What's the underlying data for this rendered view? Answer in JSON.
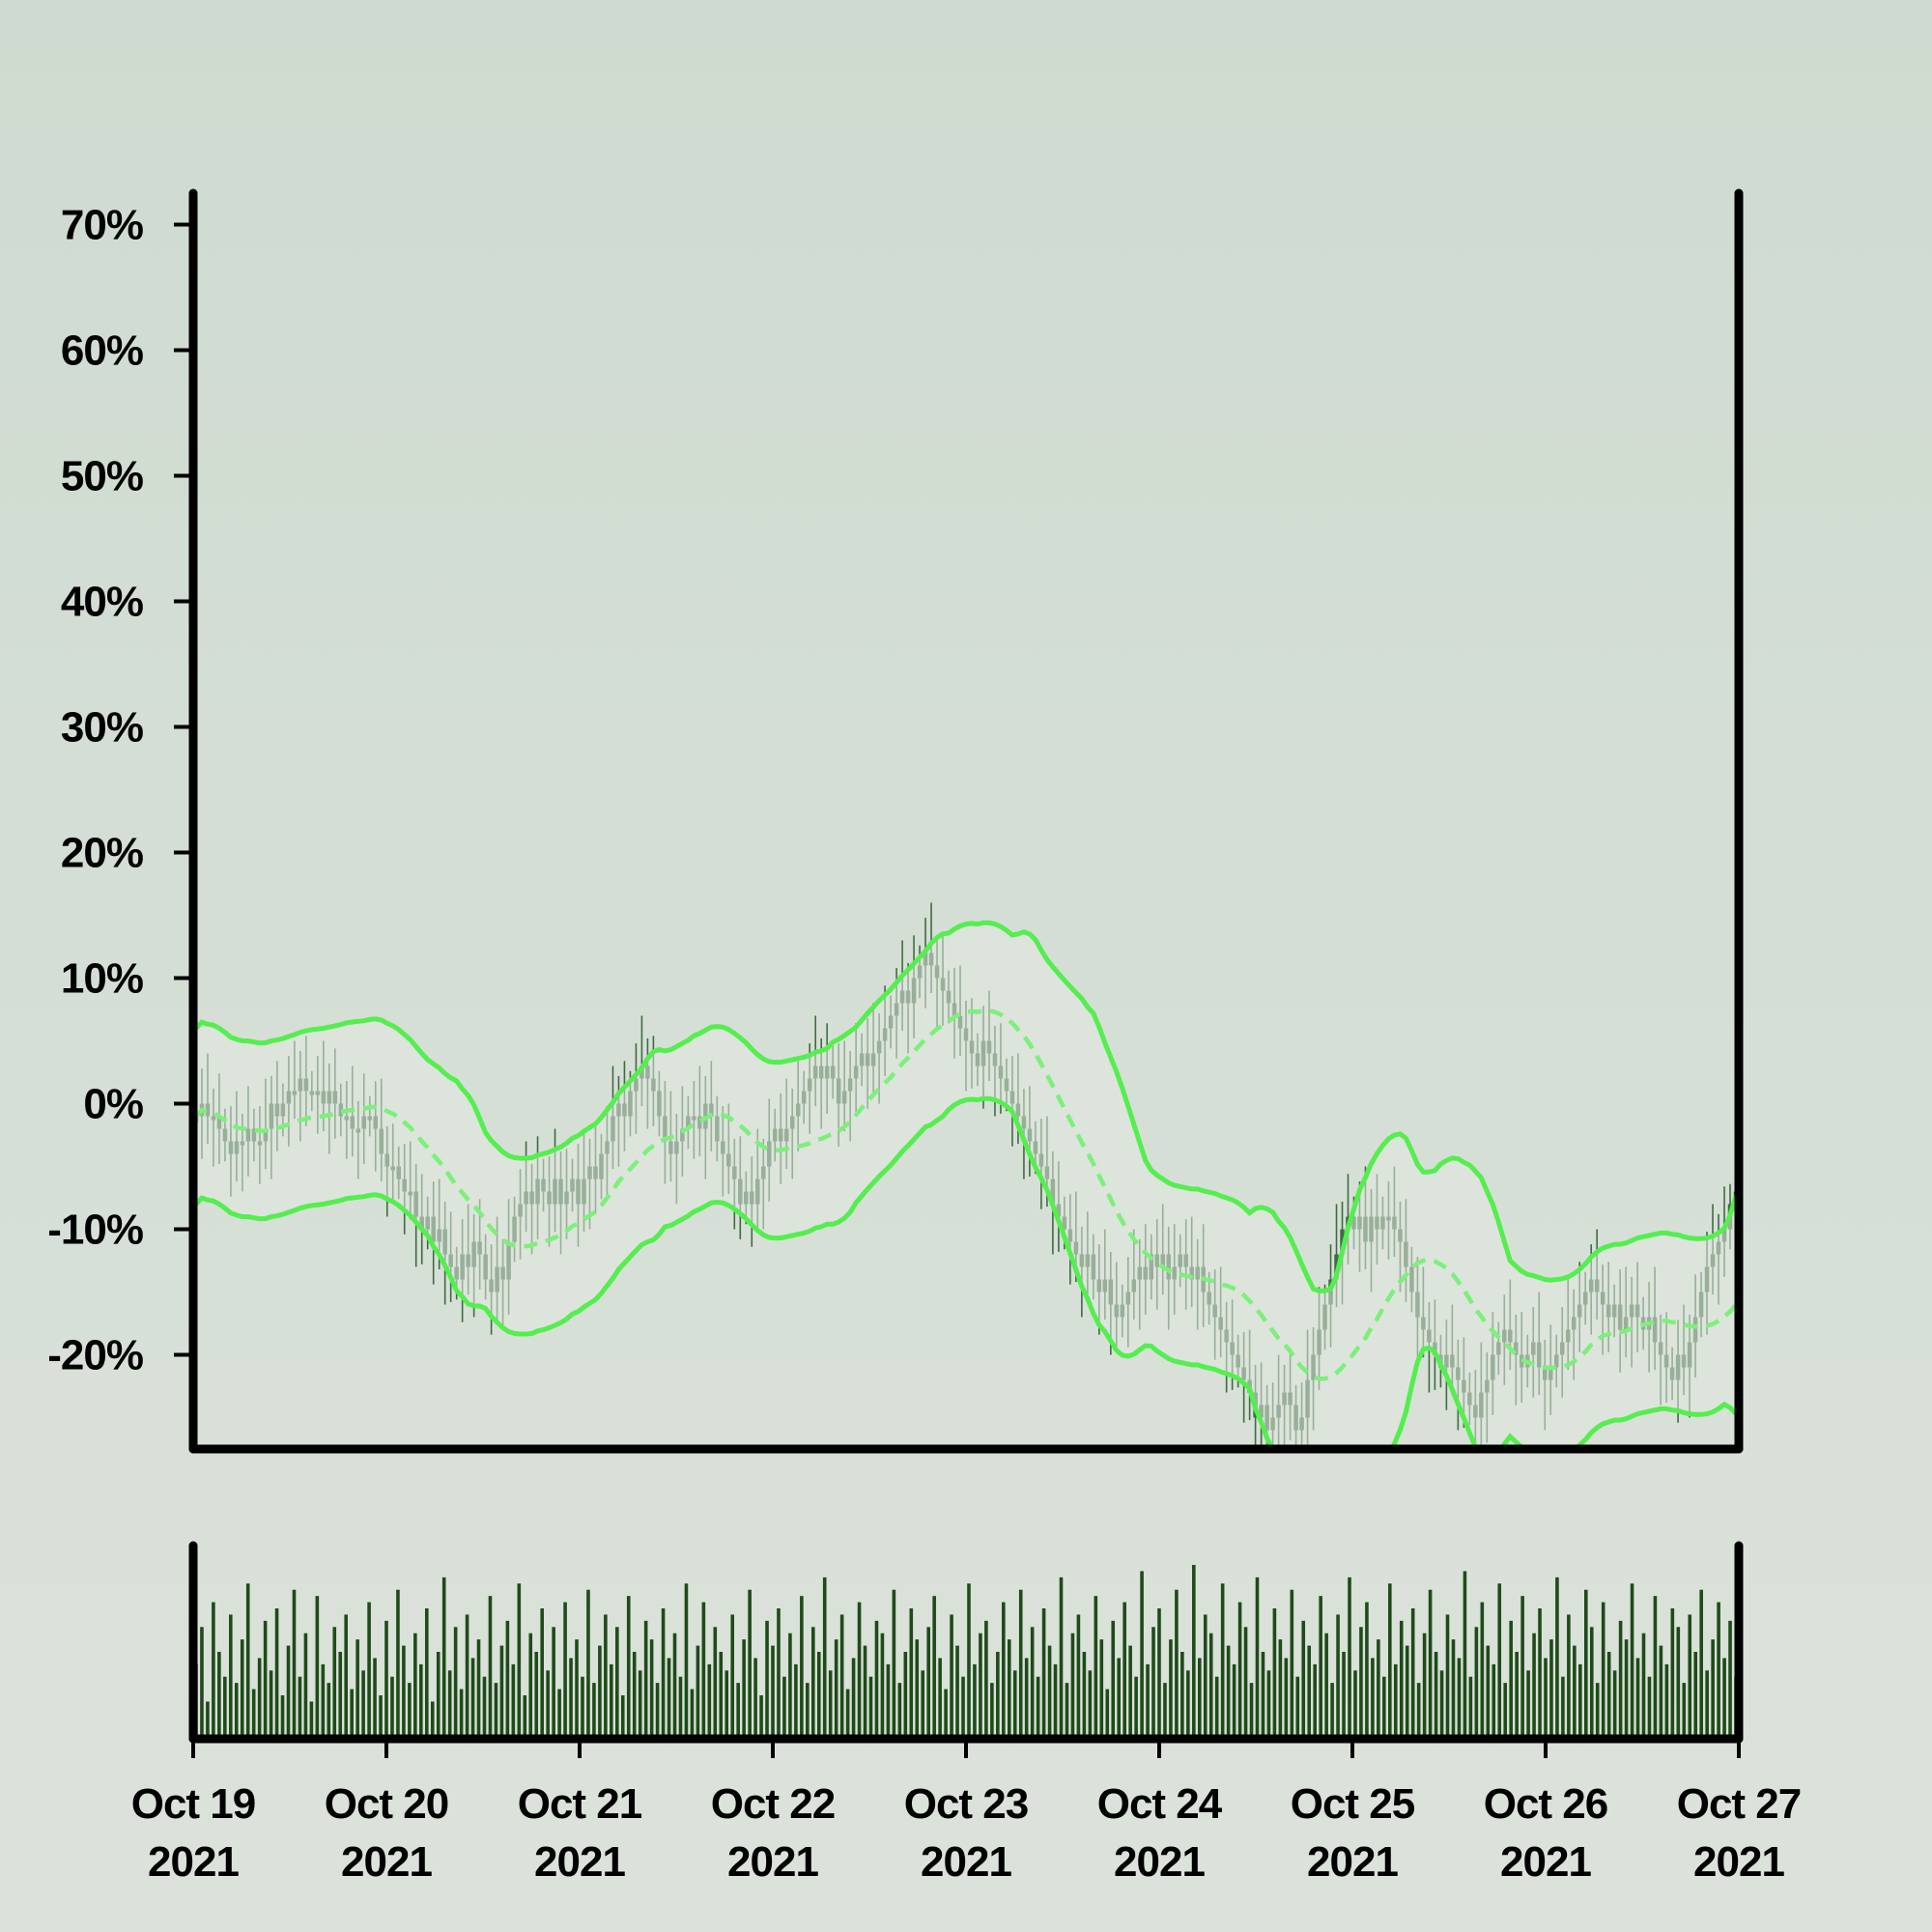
{
  "colors": {
    "background": "#d3ddd3",
    "axis": "#000000",
    "candle": "#3f6b43",
    "candle_dark": "#1f4a22",
    "band": "#55ee4f",
    "band_fill": "#e2e8e0",
    "mid": "#7cf07a",
    "volume": "#1f4a1a"
  },
  "chart_data": {
    "type": "candlestick",
    "title": "",
    "xlabel": "",
    "ylabel": "",
    "y_unit": "%",
    "ylim": [
      -27.5,
      72.5
    ],
    "yticks": [
      70,
      60,
      50,
      40,
      30,
      20,
      10,
      0,
      -10,
      -20
    ],
    "ytick_labels": [
      "70%",
      "60%",
      "50%",
      "40%",
      "30%",
      "20%",
      "10%",
      "0%",
      "-10%",
      "-20%"
    ],
    "xlim": [
      "2021-10-19",
      "2021-10-27"
    ],
    "xticks": [
      {
        "line1": "Oct 19",
        "line2": "2021"
      },
      {
        "line1": "Oct 20",
        "line2": "2021"
      },
      {
        "line1": "Oct 21",
        "line2": "2021"
      },
      {
        "line1": "Oct 22",
        "line2": "2021"
      },
      {
        "line1": "Oct 23",
        "line2": "2021"
      },
      {
        "line1": "Oct 24",
        "line2": "2021"
      },
      {
        "line1": "Oct 25",
        "line2": "2021"
      },
      {
        "line1": "Oct 26",
        "line2": "2021"
      },
      {
        "line1": "Oct 27",
        "line2": "2021"
      }
    ],
    "candle_interval_hours": 1,
    "close_series": [
      -1,
      0,
      -1,
      -1,
      -2,
      -3,
      -4,
      -3,
      -3,
      -2,
      -3,
      -3,
      -2,
      0,
      -1,
      0,
      1,
      1,
      2,
      1,
      1,
      1,
      0,
      1,
      0,
      -1,
      -1,
      -2,
      -2,
      -1,
      -1,
      -2,
      -4,
      -5,
      -5,
      -6,
      -7,
      -7,
      -9,
      -10,
      -9,
      -11,
      -10,
      -12,
      -13,
      -14,
      -12,
      -13,
      -11,
      -12,
      -14,
      -15,
      -13,
      -14,
      -11,
      -9,
      -8,
      -7,
      -8,
      -6,
      -7,
      -8,
      -6,
      -8,
      -7,
      -6,
      -8,
      -6,
      -5,
      -6,
      -4,
      -3,
      -1,
      0,
      -1,
      1,
      2,
      3,
      2,
      1,
      -1,
      -3,
      -4,
      -3,
      -2,
      -1,
      -1,
      -2,
      0,
      -1,
      -3,
      -4,
      -5,
      -6,
      -8,
      -7,
      -8,
      -6,
      -5,
      -3,
      -2,
      -3,
      -2,
      -1,
      0,
      1,
      2,
      3,
      2,
      3,
      2,
      0,
      1,
      2,
      3,
      4,
      3,
      4,
      5,
      6,
      7,
      8,
      9,
      8,
      10,
      11,
      12,
      11,
      10,
      9,
      8,
      7,
      6,
      5,
      4,
      3,
      5,
      4,
      3,
      2,
      1,
      0,
      -1,
      -2,
      -3,
      -4,
      -5,
      -6,
      -8,
      -9,
      -10,
      -11,
      -12,
      -13,
      -12,
      -14,
      -15,
      -14,
      -16,
      -17,
      -16,
      -15,
      -14,
      -13,
      -14,
      -12,
      -13,
      -12,
      -14,
      -13,
      -12,
      -13,
      -14,
      -13,
      -15,
      -16,
      -17,
      -18,
      -19,
      -20,
      -21,
      -22,
      -23,
      -25,
      -24,
      -26,
      -25,
      -24,
      -23,
      -24,
      -26,
      -25,
      -22,
      -20,
      -18,
      -16,
      -14,
      -12,
      -10,
      -9,
      -10,
      -9,
      -11,
      -9,
      -10,
      -9,
      -9,
      -10,
      -11,
      -13,
      -15,
      -17,
      -18,
      -19,
      -20,
      -21,
      -20,
      -21,
      -22,
      -23,
      -24,
      -25,
      -23,
      -22,
      -20,
      -19,
      -18,
      -19,
      -20,
      -21,
      -20,
      -19,
      -21,
      -22,
      -21,
      -20,
      -19,
      -18,
      -17,
      -16,
      -15,
      -14,
      -15,
      -16,
      -17,
      -16,
      -18,
      -17,
      -16,
      -17,
      -18,
      -17,
      -19,
      -20,
      -21,
      -22,
      -20,
      -21,
      -19,
      -17,
      -15,
      -13,
      -12,
      -11,
      -10,
      -8,
      -7
    ],
    "volume": [
      12,
      18,
      6,
      22,
      14,
      10,
      20,
      9,
      16,
      25,
      8,
      13,
      19,
      11,
      21,
      7,
      15,
      24,
      10,
      17,
      6,
      23,
      12,
      9,
      18,
      14,
      20,
      8,
      16,
      11,
      22,
      13,
      7,
      19,
      10,
      24,
      15,
      9,
      17,
      12,
      21,
      6,
      14,
      26,
      11,
      18,
      8,
      20,
      13,
      16,
      10,
      23,
      9,
      15,
      19,
      12,
      25,
      7,
      17,
      14,
      21,
      11,
      18,
      8,
      22,
      13,
      16,
      10,
      24,
      9,
      15,
      20,
      12,
      18,
      7,
      23,
      14,
      11,
      19,
      16,
      9,
      21,
      13,
      17,
      10,
      25,
      8,
      15,
      22,
      12,
      18,
      14,
      11,
      20,
      9,
      16,
      24,
      13,
      7,
      19,
      15,
      21,
      10,
      17,
      12,
      23,
      9,
      18,
      14,
      26,
      11,
      16,
      20,
      8,
      13,
      22,
      15,
      10,
      19,
      17,
      12,
      24,
      9,
      14,
      21,
      16,
      11,
      18,
      23,
      13,
      8,
      20,
      15,
      10,
      25,
      12,
      17,
      19,
      9,
      14,
      22,
      16,
      11,
      24,
      13,
      18,
      10,
      21,
      15,
      12,
      26,
      9,
      17,
      20,
      14,
      11,
      23,
      16,
      8,
      19,
      13,
      22,
      15,
      10,
      27,
      12,
      18,
      21,
      9,
      16,
      24,
      14,
      11,
      28,
      13,
      20,
      17,
      10,
      25,
      15,
      12,
      22,
      18,
      9,
      26,
      14,
      11,
      21,
      16,
      13,
      24,
      10,
      19,
      15,
      12,
      23,
      17,
      9,
      20,
      14,
      26,
      11,
      18,
      22,
      13,
      16,
      10,
      25,
      12,
      19,
      15,
      21,
      9,
      17,
      24,
      14,
      11,
      20,
      16,
      13,
      27,
      10,
      18,
      22,
      15,
      12,
      25,
      9,
      19,
      14,
      23,
      11,
      17,
      21,
      13,
      16,
      26,
      10,
      20,
      15,
      12,
      24,
      18,
      9,
      22,
      14,
      11,
      19,
      16,
      25,
      13,
      17,
      10,
      23,
      15,
      12,
      21,
      18,
      9,
      20,
      14,
      24,
      11,
      16,
      22,
      13,
      19,
      10
    ]
  }
}
